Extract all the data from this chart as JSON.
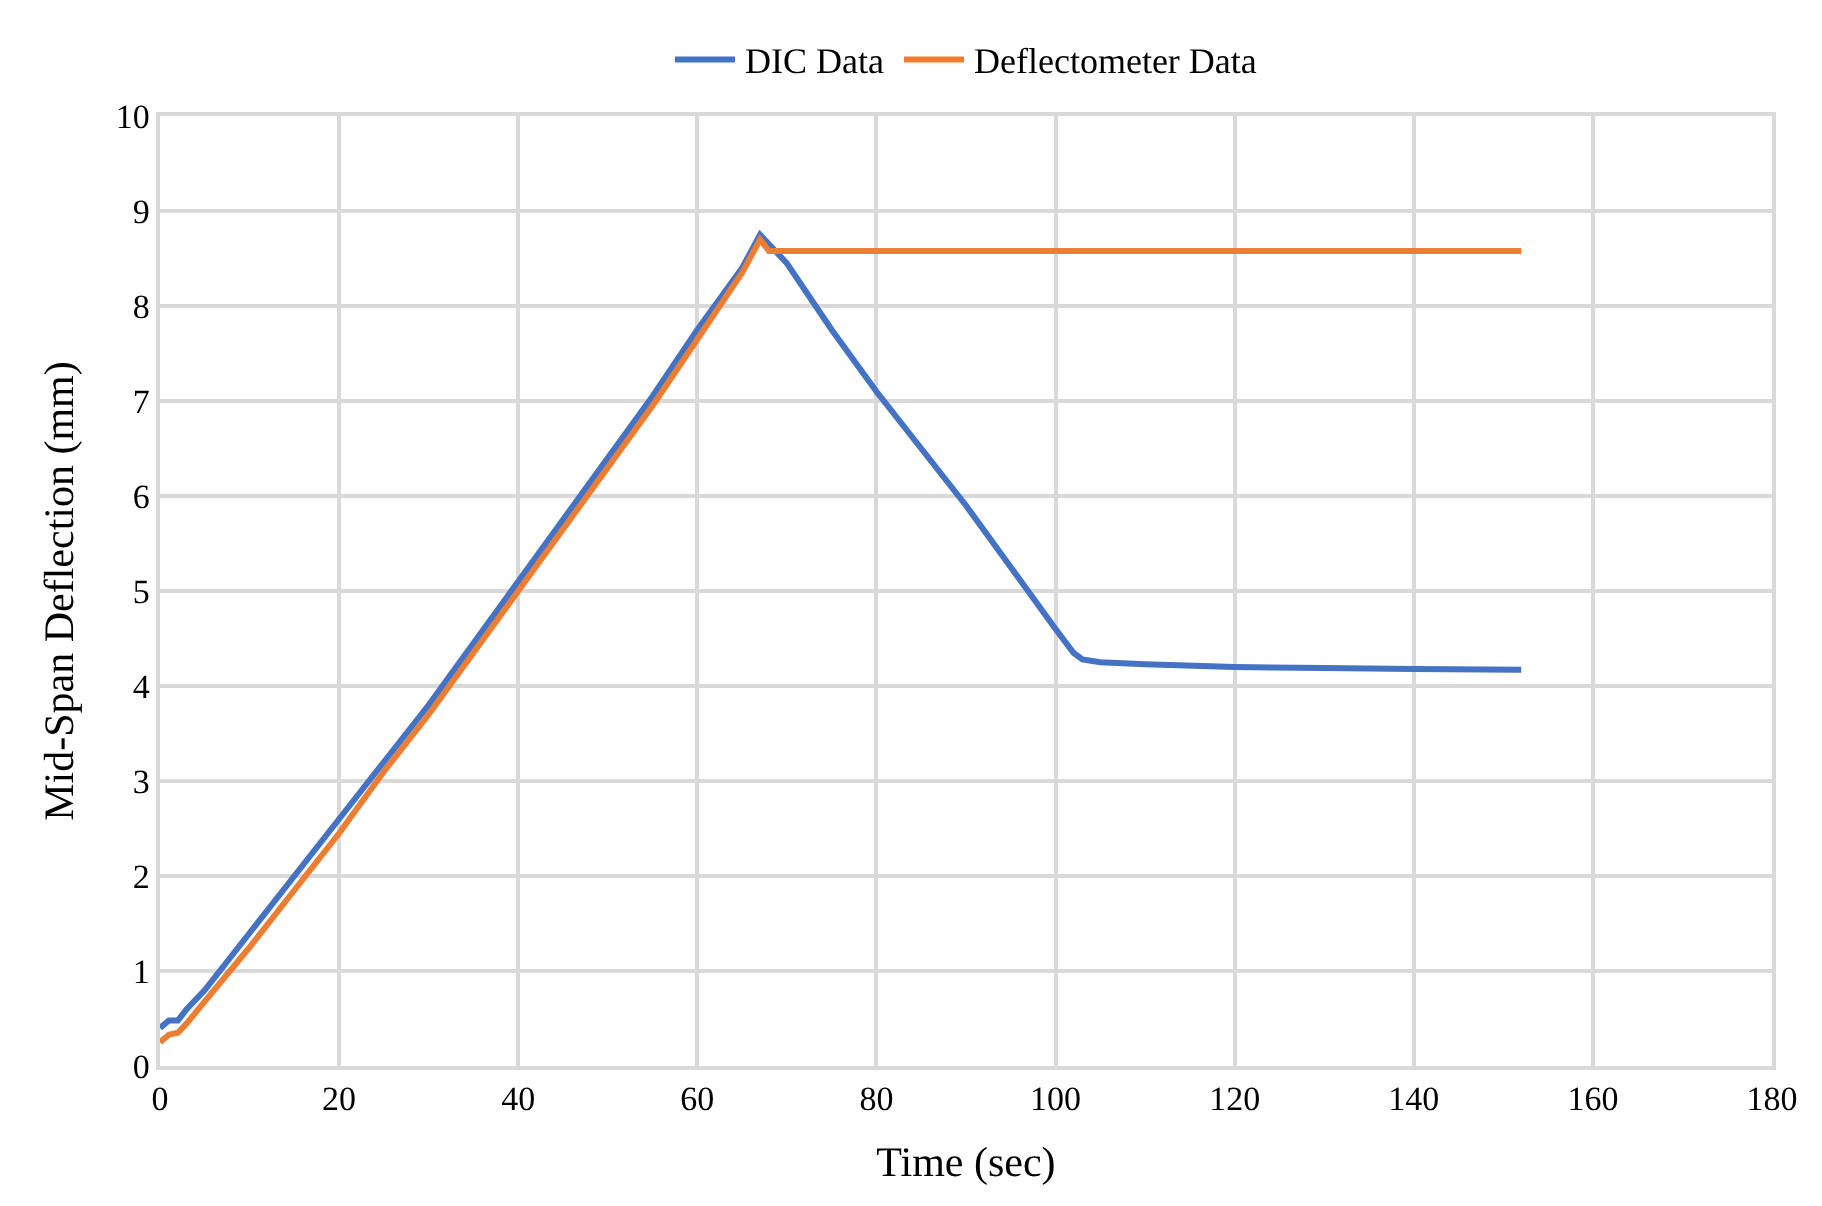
{
  "chart_data": {
    "type": "line",
    "xlabel": "Time (sec)",
    "ylabel": "Mid-Span Deflection (mm)",
    "xlim": [
      0,
      180
    ],
    "xticks": [
      0,
      20,
      40,
      60,
      80,
      100,
      120,
      140,
      160,
      180
    ],
    "ylim": [
      0,
      10
    ],
    "yticks": [
      0,
      1,
      2,
      3,
      4,
      5,
      6,
      7,
      8,
      9,
      10
    ],
    "grid": true,
    "legend": "top",
    "marker": "none",
    "line_style": "solid",
    "series": [
      {
        "name": "DIC Data",
        "color": "#4472c4",
        "x": [
          0,
          1,
          2,
          3,
          5,
          10,
          15,
          20,
          25,
          30,
          35,
          40,
          45,
          50,
          55,
          60,
          65,
          67,
          70,
          75,
          80,
          85,
          90,
          95,
          100,
          102,
          103,
          105,
          110,
          120,
          130,
          140,
          152
        ],
        "values": [
          0.4,
          0.48,
          0.48,
          0.6,
          0.8,
          1.4,
          2.0,
          2.6,
          3.2,
          3.8,
          4.45,
          5.1,
          5.75,
          6.4,
          7.05,
          7.75,
          8.4,
          8.75,
          8.45,
          7.75,
          7.1,
          6.5,
          5.9,
          5.25,
          4.6,
          4.35,
          4.28,
          4.25,
          4.23,
          4.2,
          4.19,
          4.18,
          4.17
        ]
      },
      {
        "name": "Deflectometer Data",
        "color": "#ed7d31",
        "x": [
          0,
          1,
          2,
          3,
          5,
          10,
          15,
          20,
          25,
          30,
          35,
          40,
          45,
          50,
          55,
          60,
          65,
          67,
          68,
          80,
          100,
          120,
          140,
          152
        ],
        "values": [
          0.25,
          0.33,
          0.35,
          0.45,
          0.68,
          1.25,
          1.85,
          2.45,
          3.1,
          3.7,
          4.35,
          5.0,
          5.65,
          6.3,
          6.95,
          7.65,
          8.35,
          8.7,
          8.58,
          8.58,
          8.58,
          8.58,
          8.58,
          8.58
        ]
      }
    ]
  }
}
